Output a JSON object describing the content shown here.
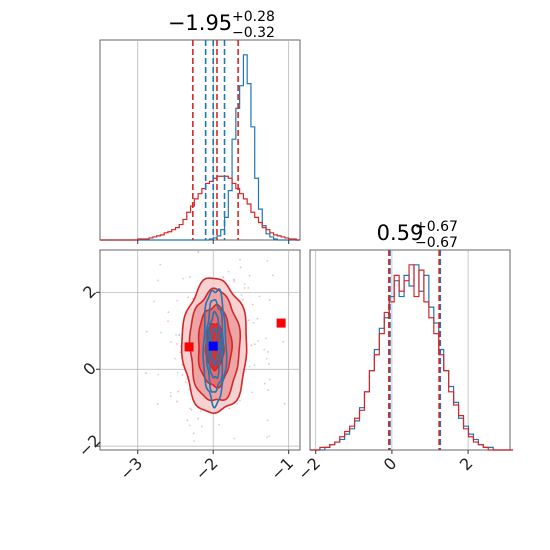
{
  "chart_data": [
    {
      "type": "histogram",
      "panel": "top-left",
      "title": {
        "value": "−1.95",
        "plus": "+0.28",
        "minus": "−0.32"
      },
      "xlim": [
        -3.5,
        -0.85
      ],
      "grid": true,
      "series": [
        {
          "name": "",
          "color": "#1f77b4",
          "bin_start": -3.5,
          "bin_width": 0.05,
          "counts": [
            0,
            0,
            0,
            0,
            0,
            0,
            0,
            0,
            0,
            0,
            0,
            0,
            0,
            0,
            0,
            0,
            0,
            0,
            0,
            0,
            0,
            0,
            0,
            0,
            0,
            0,
            0,
            0,
            0,
            1,
            2,
            4,
            10,
            22,
            48,
            98,
            128,
            150,
            180,
            152,
            110,
            60,
            30,
            14,
            6,
            3,
            1,
            0,
            0,
            0,
            0,
            0,
            0
          ]
        },
        {
          "name": "",
          "color": "#d62728",
          "bin_start": -3.5,
          "bin_width": 0.05,
          "counts": [
            0,
            0,
            0,
            0,
            0,
            0,
            0,
            0,
            0,
            0,
            1,
            1,
            1,
            2,
            3,
            4,
            5,
            7,
            8,
            10,
            12,
            15,
            20,
            27,
            33,
            40,
            45,
            50,
            55,
            57,
            60,
            62,
            62,
            62,
            60,
            55,
            50,
            45,
            40,
            35,
            27,
            22,
            17,
            12,
            10,
            7,
            5,
            4,
            3,
            2,
            1,
            1,
            0
          ]
        }
      ],
      "quantiles": [
        {
          "color": "#1f77b4",
          "values": [
            -2.1,
            -2.0,
            -1.85
          ]
        },
        {
          "color": "#d62728",
          "values": [
            -2.27,
            -1.95,
            -1.67
          ]
        }
      ]
    },
    {
      "type": "contour",
      "panel": "bottom-left",
      "xlim": [
        -3.5,
        -0.85
      ],
      "ylim": [
        -2.1,
        3.1
      ],
      "xticks": [
        "−3",
        "−2",
        "−1"
      ],
      "yticks": [
        "−2",
        "0",
        "2"
      ],
      "grid": true,
      "series": [
        {
          "name": "",
          "color": "#d62728",
          "center": [
            -1.98,
            0.6
          ],
          "sx": [
            0.12,
            0.22,
            0.33,
            0.43
          ],
          "sy": [
            0.6,
            1.05,
            1.45,
            1.75
          ]
        },
        {
          "name": "",
          "color": "#1f77b4",
          "center": [
            -1.98,
            0.6
          ],
          "sx": [
            0.05,
            0.08,
            0.11,
            0.15
          ],
          "sy": [
            0.45,
            0.85,
            1.2,
            1.5
          ]
        }
      ],
      "markers": [
        {
          "color": "#ff0000",
          "x": -1.1,
          "y": 1.2
        },
        {
          "color": "#ff0000",
          "x": -2.32,
          "y": 0.58
        },
        {
          "color": "#0000ff",
          "x": -2.0,
          "y": 0.6
        }
      ]
    },
    {
      "type": "histogram",
      "panel": "bottom-right",
      "title": {
        "value": "0.59",
        "plus": "+0.67",
        "minus": "−0.67"
      },
      "xlim": [
        -2.15,
        3.1
      ],
      "xticks": [
        "−2",
        "0",
        "2"
      ],
      "grid": true,
      "series": [
        {
          "name": "",
          "color": "#1f77b4",
          "bin_start": -2.15,
          "bin_width": 0.13,
          "counts": [
            0,
            0,
            0,
            1,
            2,
            3,
            4,
            6,
            8,
            11,
            16,
            22,
            30,
            38,
            46,
            50,
            58,
            64,
            58,
            66,
            62,
            70,
            60,
            66,
            54,
            48,
            38,
            30,
            24,
            18,
            12,
            9,
            6,
            4,
            2,
            1,
            1,
            0,
            0,
            0,
            0
          ]
        },
        {
          "name": "",
          "color": "#d62728",
          "bin_start": -2.15,
          "bin_width": 0.13,
          "counts": [
            0,
            0,
            1,
            1,
            2,
            3,
            5,
            7,
            9,
            12,
            15,
            22,
            30,
            36,
            44,
            52,
            56,
            66,
            60,
            64,
            70,
            58,
            68,
            56,
            50,
            44,
            36,
            30,
            22,
            17,
            13,
            8,
            5,
            3,
            2,
            1,
            0,
            0,
            0,
            0,
            0
          ]
        }
      ],
      "quantiles": [
        {
          "color": "#1f77b4",
          "values": [
            -0.05,
            1.27
          ]
        },
        {
          "color": "#d62728",
          "values": [
            -0.08,
            1.24
          ]
        }
      ]
    }
  ]
}
